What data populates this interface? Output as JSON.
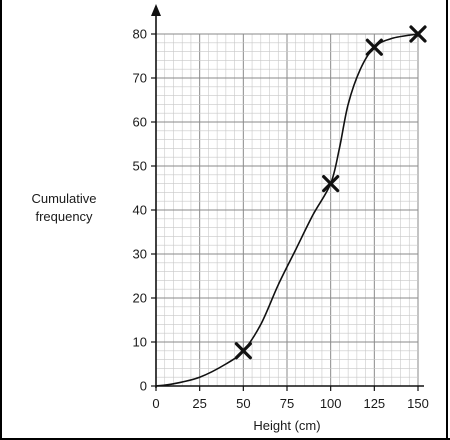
{
  "chart_data": {
    "type": "line",
    "title": "",
    "xlabel": "Height (cm)",
    "ylabel": "Cumulative frequency",
    "ylabel_lines": [
      "Cumulative",
      "frequency"
    ],
    "xlim": [
      0,
      150
    ],
    "ylim": [
      0,
      80
    ],
    "x_ticks": [
      0,
      25,
      50,
      75,
      100,
      125,
      150
    ],
    "y_ticks": [
      0,
      10,
      20,
      30,
      40,
      50,
      60,
      70,
      80
    ],
    "grid": true,
    "legend": "none",
    "plotted_points": [
      {
        "x": 50,
        "y": 8
      },
      {
        "x": 100,
        "y": 46
      },
      {
        "x": 125,
        "y": 77
      },
      {
        "x": 150,
        "y": 80
      }
    ],
    "curve": [
      {
        "x": 0,
        "y": 0
      },
      {
        "x": 10,
        "y": 0.5
      },
      {
        "x": 25,
        "y": 2
      },
      {
        "x": 40,
        "y": 5
      },
      {
        "x": 50,
        "y": 8
      },
      {
        "x": 60,
        "y": 14
      },
      {
        "x": 70,
        "y": 23
      },
      {
        "x": 80,
        "y": 31
      },
      {
        "x": 90,
        "y": 39
      },
      {
        "x": 100,
        "y": 46
      },
      {
        "x": 105,
        "y": 54
      },
      {
        "x": 110,
        "y": 64
      },
      {
        "x": 117,
        "y": 72
      },
      {
        "x": 125,
        "y": 77
      },
      {
        "x": 135,
        "y": 79
      },
      {
        "x": 150,
        "y": 80
      }
    ],
    "colors": {
      "grid_minor": "#c8c8c8",
      "grid_major": "#8a8a8a",
      "line": "#111111",
      "marker": "#111111"
    }
  }
}
